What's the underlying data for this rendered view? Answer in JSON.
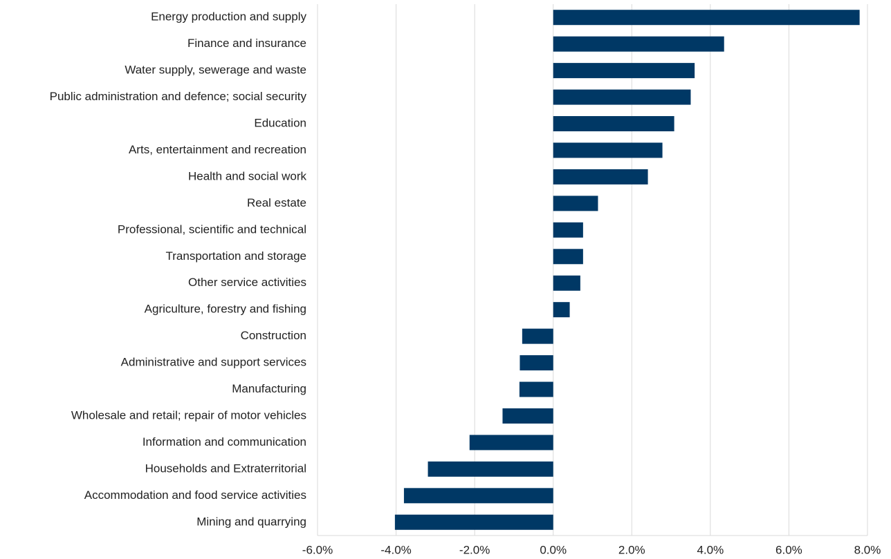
{
  "chart_data": {
    "type": "bar",
    "orientation": "horizontal",
    "categories": [
      "Energy production and supply",
      "Finance and insurance",
      "Water supply, sewerage and waste",
      "Public administration and defence; social security",
      "Education",
      "Arts, entertainment and recreation",
      "Health and social work",
      "Real estate",
      "Professional, scientific and technical",
      "Transportation and storage",
      "Other service activities",
      "Agriculture, forestry and fishing",
      "Construction",
      "Administrative and support services",
      "Manufacturing",
      "Wholesale and retail; repair of motor vehicles",
      "Information and communication",
      "Households and Extraterritorial",
      "Accommodation and food service activities",
      "Mining and quarrying"
    ],
    "values": [
      7.8,
      4.35,
      3.6,
      3.5,
      3.08,
      2.78,
      2.41,
      1.14,
      0.76,
      0.76,
      0.69,
      0.42,
      -0.79,
      -0.85,
      -0.86,
      -1.29,
      -2.13,
      -3.19,
      -3.8,
      -4.03
    ],
    "color": "#003865",
    "xlim": [
      -6,
      8
    ],
    "xticks": [
      {
        "value": -6,
        "label": "-6.0%"
      },
      {
        "value": -4,
        "label": "-4.0%"
      },
      {
        "value": -2,
        "label": "-2.0%"
      },
      {
        "value": 0,
        "label": "0.0%"
      },
      {
        "value": 2,
        "label": "2.0%"
      },
      {
        "value": 4,
        "label": "4.0%"
      },
      {
        "value": 6,
        "label": "6.0%"
      },
      {
        "value": 8,
        "label": "8.0%"
      }
    ],
    "grid": true
  }
}
